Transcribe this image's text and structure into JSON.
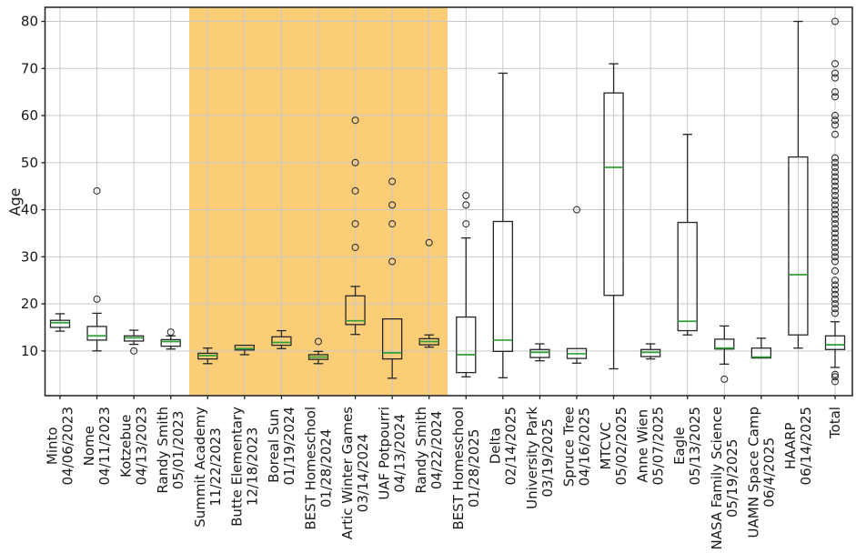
{
  "figure": {
    "background": "#ffffff"
  },
  "chart_data": {
    "type": "boxplot",
    "title": "",
    "xlabel": "",
    "ylabel": "Age",
    "ylim": [
      0.5,
      83
    ],
    "yticks": [
      10,
      20,
      30,
      40,
      50,
      60,
      70,
      80
    ],
    "grid": true,
    "legend": null,
    "colors": {
      "box_edge": "#262626",
      "median": "#2f9e37",
      "grid": "#c9c9c9",
      "band": "#fccd77",
      "text": "#1a1a1a",
      "spine": "#1f1f1f"
    },
    "highlight_band": {
      "from_category_index": 3.5,
      "to_category_index": 10.5,
      "color": "#fccd77"
    },
    "categories": [
      {
        "name": "Minto",
        "date": "04/06/2023"
      },
      {
        "name": "Nome",
        "date": "04/11/2023"
      },
      {
        "name": "Kotzebue",
        "date": "04/13/2023"
      },
      {
        "name": "Randy Smith",
        "date": "05/01/2023"
      },
      {
        "name": "Summit Academy",
        "date": "11/22/2023"
      },
      {
        "name": "Butte Elementary",
        "date": "12/18/2023"
      },
      {
        "name": "Boreal Sun",
        "date": "01/19/2024"
      },
      {
        "name": "BEST Homeschool",
        "date": "01/28/2024"
      },
      {
        "name": "Artic Winter Games",
        "date": "03/14/2024"
      },
      {
        "name": "UAF Potpourri",
        "date": "04/13/2024"
      },
      {
        "name": "Randy Smith",
        "date": "04/22/2024"
      },
      {
        "name": "BEST Homeschool",
        "date": "01/28/2025"
      },
      {
        "name": "Delta",
        "date": "02/14/2025"
      },
      {
        "name": "University Park",
        "date": "03/19/2025"
      },
      {
        "name": "Spruce Tree",
        "date": "04/16/2025"
      },
      {
        "name": "MTCVC",
        "date": "05/02/2025"
      },
      {
        "name": "Anne Wien",
        "date": "05/07/2025"
      },
      {
        "name": "Eagle",
        "date": "05/13/2025"
      },
      {
        "name": "NASA Family Science",
        "date": "05/19/2025"
      },
      {
        "name": "UAMN Space Camp",
        "date": "06/4/2025"
      },
      {
        "name": "HAARP",
        "date": "06/14/2025"
      },
      {
        "name": "Total",
        "date": ""
      }
    ],
    "boxes": [
      {
        "whislo": 14.2,
        "q1": 15.0,
        "med": 16.0,
        "q3": 16.5,
        "whishi": 17.9,
        "fliers": []
      },
      {
        "whislo": 10.0,
        "q1": 12.3,
        "med": 13.2,
        "q3": 15.2,
        "whishi": 18.0,
        "fliers": [
          21,
          44
        ]
      },
      {
        "whislo": 11.4,
        "q1": 12.1,
        "med": 12.8,
        "q3": 13.2,
        "whishi": 14.4,
        "fliers": [
          10
        ]
      },
      {
        "whislo": 10.4,
        "q1": 11.0,
        "med": 12.0,
        "q3": 12.4,
        "whishi": 13.2,
        "fliers": [
          14
        ]
      },
      {
        "whislo": 7.3,
        "q1": 8.3,
        "med": 9.0,
        "q3": 9.5,
        "whishi": 10.6,
        "fliers": []
      },
      {
        "whislo": 9.2,
        "q1": 10.2,
        "med": 10.5,
        "q3": 11.2,
        "whishi": 11.2,
        "fliers": []
      },
      {
        "whislo": 10.5,
        "q1": 11.2,
        "med": 11.8,
        "q3": 13.0,
        "whishi": 14.3,
        "fliers": []
      },
      {
        "whislo": 7.3,
        "q1": 8.2,
        "med": 8.7,
        "q3": 9.2,
        "whishi": 9.9,
        "fliers": [
          12
        ]
      },
      {
        "whislo": 13.5,
        "q1": 15.6,
        "med": 16.4,
        "q3": 21.7,
        "whishi": 23.7,
        "fliers": [
          32,
          37,
          44,
          50,
          59
        ]
      },
      {
        "whislo": 4.2,
        "q1": 8.3,
        "med": 9.6,
        "q3": 16.8,
        "whishi": 16.8,
        "fliers": [
          29,
          37,
          41,
          46
        ]
      },
      {
        "whislo": 10.8,
        "q1": 11.3,
        "med": 12.0,
        "q3": 12.6,
        "whishi": 13.4,
        "fliers": [
          33
        ]
      },
      {
        "whislo": 4.5,
        "q1": 5.4,
        "med": 9.2,
        "q3": 17.2,
        "whishi": 34.0,
        "fliers": [
          37,
          41,
          43
        ]
      },
      {
        "whislo": 4.3,
        "q1": 9.9,
        "med": 12.3,
        "q3": 37.5,
        "whishi": 69.0,
        "fliers": []
      },
      {
        "whislo": 7.9,
        "q1": 8.6,
        "med": 9.7,
        "q3": 10.3,
        "whishi": 11.5,
        "fliers": []
      },
      {
        "whislo": 7.4,
        "q1": 8.4,
        "med": 9.4,
        "q3": 10.5,
        "whishi": 10.5,
        "fliers": [
          40
        ]
      },
      {
        "whislo": 6.2,
        "q1": 21.8,
        "med": 49.0,
        "q3": 64.8,
        "whishi": 71.0,
        "fliers": []
      },
      {
        "whislo": 8.3,
        "q1": 8.8,
        "med": 9.7,
        "q3": 10.3,
        "whishi": 11.5,
        "fliers": []
      },
      {
        "whislo": 13.4,
        "q1": 14.3,
        "med": 16.3,
        "q3": 37.3,
        "whishi": 56.0,
        "fliers": []
      },
      {
        "whislo": 7.2,
        "q1": 10.4,
        "med": 10.6,
        "q3": 12.5,
        "whishi": 15.3,
        "fliers": [
          4
        ]
      },
      {
        "whislo": 8.5,
        "q1": 8.5,
        "med": 8.7,
        "q3": 10.6,
        "whishi": 12.7,
        "fliers": []
      },
      {
        "whislo": 10.6,
        "q1": 13.4,
        "med": 26.2,
        "q3": 51.2,
        "whishi": 80.0,
        "fliers": []
      },
      {
        "whislo": 6.5,
        "q1": 10.3,
        "med": 11.3,
        "q3": 13.2,
        "whishi": 16.2,
        "fliers": [
          80,
          71,
          69,
          68,
          65,
          64,
          60,
          59,
          58,
          56,
          51,
          50,
          49,
          48,
          47,
          46,
          45,
          44,
          43,
          42,
          41,
          40,
          39,
          38,
          37,
          36,
          35,
          34,
          33,
          32,
          31,
          30,
          29,
          27,
          25,
          24,
          23,
          22,
          21,
          20,
          19,
          18,
          5,
          4.5,
          3.5
        ]
      }
    ]
  }
}
